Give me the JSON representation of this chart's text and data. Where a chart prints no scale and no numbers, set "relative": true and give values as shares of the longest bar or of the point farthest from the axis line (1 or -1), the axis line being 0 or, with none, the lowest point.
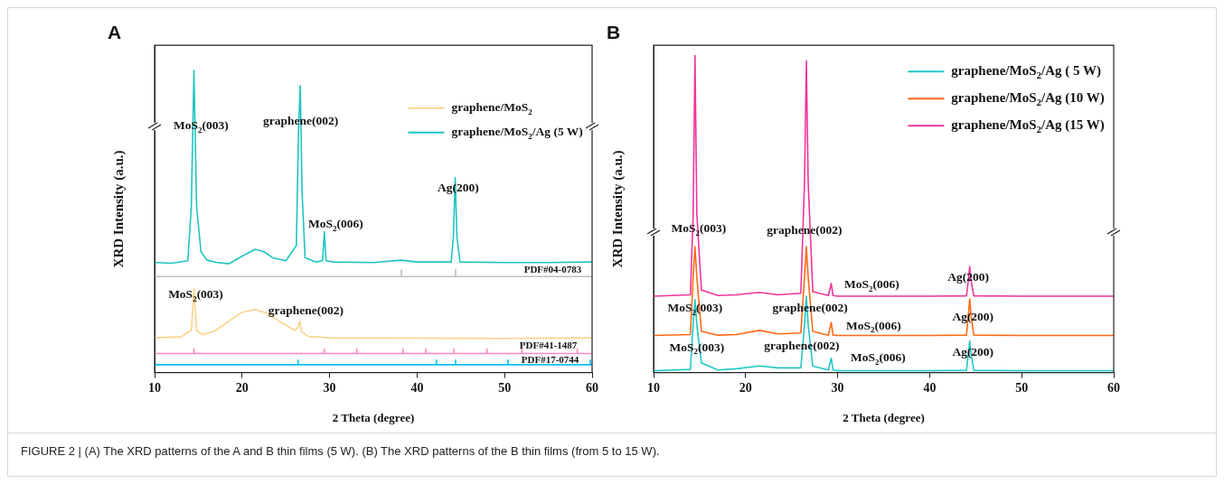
{
  "chart_data": [
    {
      "type": "line",
      "title": "A",
      "xlabel": "2 Theta (degree)",
      "ylabel": "XRD Intensity (a.u.)",
      "relative": true,
      "xlim": [
        10,
        60
      ],
      "xticks": [
        10,
        20,
        30,
        40,
        50,
        60
      ],
      "grid": false,
      "legend": "top right",
      "series": [
        {
          "name": "graphene/MoS$_{2}$",
          "color": "#fcd28a",
          "x": [
            10,
            13,
            14.2,
            14.5,
            14.8,
            15.5,
            17,
            18.5,
            20,
            21.5,
            23,
            24.5,
            26,
            26.4,
            26.6,
            26.8,
            27.5,
            30,
            40,
            50,
            60
          ],
          "values": [
            0.115,
            0.118,
            0.14,
            0.277,
            0.14,
            0.125,
            0.14,
            0.17,
            0.2,
            0.209,
            0.195,
            0.165,
            0.14,
            0.15,
            0.17,
            0.135,
            0.12,
            0.115,
            0.114,
            0.113,
            0.115
          ]
        },
        {
          "name": "graphene/MoS$_{2}$/Ag (5 W)",
          "color": "#20c4c0",
          "x": [
            10,
            12,
            13.8,
            14.2,
            14.5,
            14.8,
            15.3,
            16,
            17,
            18.5,
            20,
            21.5,
            22.5,
            23.5,
            25,
            26.2,
            26.45,
            26.65,
            26.85,
            27.2,
            28.5,
            29.2,
            29.4,
            29.6,
            30.5,
            35,
            38.2,
            40,
            43.9,
            44.15,
            44.35,
            44.55,
            44.9,
            50,
            55,
            60
          ],
          "values": [
            0.364,
            0.362,
            0.37,
            0.55,
            1.0,
            0.55,
            0.4,
            0.372,
            0.365,
            0.36,
            0.385,
            0.408,
            0.4,
            0.38,
            0.37,
            0.42,
            0.8,
            0.95,
            0.6,
            0.38,
            0.366,
            0.37,
            0.466,
            0.37,
            0.366,
            0.364,
            0.372,
            0.366,
            0.366,
            0.45,
            0.646,
            0.45,
            0.366,
            0.364,
            0.364,
            0.366
          ]
        },
        {
          "color": "#bdbdbd",
          "x": [
            10,
            38.2,
            38.2,
            38.2,
            44.4,
            44.4,
            44.4,
            60
          ],
          "values": [
            0.318,
            0.318,
            0.34,
            0.318,
            0.318,
            0.34,
            0.318,
            0.318
          ]
        },
        {
          "color": "#ff88c0",
          "x": [
            10,
            14.5,
            14.5,
            14.5,
            29.4,
            29.4,
            29.4,
            33.1,
            33.1,
            33.1,
            38.4,
            38.4,
            38.4,
            41.0,
            41.0,
            41.0,
            44.2,
            44.2,
            44.2,
            48.0,
            48.0,
            48.0,
            52.0,
            52.0,
            52.0,
            58.3,
            58.3,
            58.3,
            60
          ],
          "values": [
            0.063,
            0.063,
            0.078,
            0.063,
            0.063,
            0.078,
            0.063,
            0.063,
            0.078,
            0.063,
            0.063,
            0.078,
            0.063,
            0.063,
            0.078,
            0.063,
            0.063,
            0.078,
            0.063,
            0.063,
            0.078,
            0.063,
            0.063,
            0.078,
            0.063,
            0.063,
            0.078,
            0.063,
            0.063
          ]
        },
        {
          "color": "#00bff3",
          "x": [
            10,
            26.4,
            26.4,
            26.4,
            42.2,
            42.2,
            42.2,
            44.4,
            44.4,
            44.4,
            50.4,
            50.4,
            50.4,
            59.8,
            59.8,
            59.8,
            60
          ],
          "values": [
            0.026,
            0.026,
            0.041,
            0.026,
            0.026,
            0.041,
            0.026,
            0.026,
            0.041,
            0.026,
            0.026,
            0.041,
            0.026,
            0.026,
            0.041,
            0.026,
            0.026
          ]
        }
      ],
      "annotations": [
        "MoS$_{2}$(003)",
        "graphene(002)",
        "MoS$_{2}$(006)",
        "Ag(200)",
        "MoS$_{2}$(003)",
        "graphene(002)",
        "PDF#04-0783",
        "PDF#41-1487",
        "PDF#17-0744",
        "FIGURE 2 | (A) The XRD patterns of the A and B thin films (5 W). (B) The XRD patterns of the B thin films (from 5 to 15 W)."
      ]
    },
    {
      "type": "line",
      "title": "B",
      "xlabel": "2 Theta (degree)",
      "ylabel": "XRD Intensity (a.u.)",
      "relative": true,
      "xlim": [
        10,
        60
      ],
      "xticks": [
        10,
        20,
        30,
        40,
        50,
        60
      ],
      "grid": false,
      "legend": "top right",
      "series": [
        {
          "name": "graphene/MoS$_{2}$/Ag ( 5 W)",
          "color": "#22c7c7",
          "x": [
            10,
            14,
            14.3,
            14.5,
            14.7,
            15.2,
            17,
            19,
            21.5,
            23.5,
            26,
            26.4,
            26.6,
            26.8,
            27.3,
            29,
            29.3,
            29.5,
            30,
            40,
            44,
            44.2,
            44.35,
            44.5,
            44.8,
            50,
            60
          ],
          "values": [
            0.006,
            0.01,
            0.15,
            0.23,
            0.15,
            0.03,
            0.008,
            0.012,
            0.021,
            0.015,
            0.015,
            0.15,
            0.24,
            0.15,
            0.02,
            0.008,
            0.046,
            0.008,
            0.006,
            0.006,
            0.007,
            0.06,
            0.1,
            0.06,
            0.007,
            0.006,
            0.006
          ]
        },
        {
          "name": "graphene/MoS$_{2}$/Ag (10 W)",
          "color": "#ff6a13",
          "x": [
            10,
            14,
            14.3,
            14.5,
            14.7,
            15.2,
            17,
            19,
            21.5,
            23.5,
            26,
            26.4,
            26.6,
            26.8,
            27.3,
            29,
            29.3,
            29.5,
            30,
            40,
            44,
            44.2,
            44.35,
            44.5,
            44.8,
            50,
            60
          ],
          "values": [
            0.117,
            0.12,
            0.3,
            0.397,
            0.3,
            0.13,
            0.118,
            0.12,
            0.133,
            0.122,
            0.125,
            0.3,
            0.397,
            0.3,
            0.13,
            0.118,
            0.158,
            0.118,
            0.117,
            0.117,
            0.118,
            0.18,
            0.232,
            0.18,
            0.118,
            0.117,
            0.117
          ]
        },
        {
          "name": "graphene/MoS$_{2}$/Ag (15 W)",
          "color": "#f0349a",
          "x": [
            10,
            14,
            14.3,
            14.5,
            14.7,
            15.2,
            17,
            19,
            21.5,
            23.5,
            26,
            26.4,
            26.6,
            26.8,
            27.3,
            29,
            29.3,
            29.5,
            30,
            40,
            44,
            44.2,
            44.35,
            44.5,
            44.8,
            50,
            60
          ],
          "values": [
            0.241,
            0.245,
            0.5,
            1.0,
            0.5,
            0.26,
            0.243,
            0.245,
            0.253,
            0.245,
            0.25,
            0.6,
            0.983,
            0.6,
            0.255,
            0.243,
            0.281,
            0.243,
            0.241,
            0.241,
            0.242,
            0.29,
            0.334,
            0.29,
            0.242,
            0.241,
            0.241
          ]
        }
      ],
      "annotations": [
        "MoS$_{2}$(003)",
        "graphene(002)",
        "MoS$_{2}$(006)",
        "Ag(200)",
        "MoS$_{2}$(003)",
        "graphene(002)",
        "MoS$_{2}$(006)",
        "Ag(200)",
        "MoS$_{2}$(003)",
        "graphene(002)",
        "MoS$_{2}$(006)",
        "Ag(200)"
      ]
    }
  ]
}
